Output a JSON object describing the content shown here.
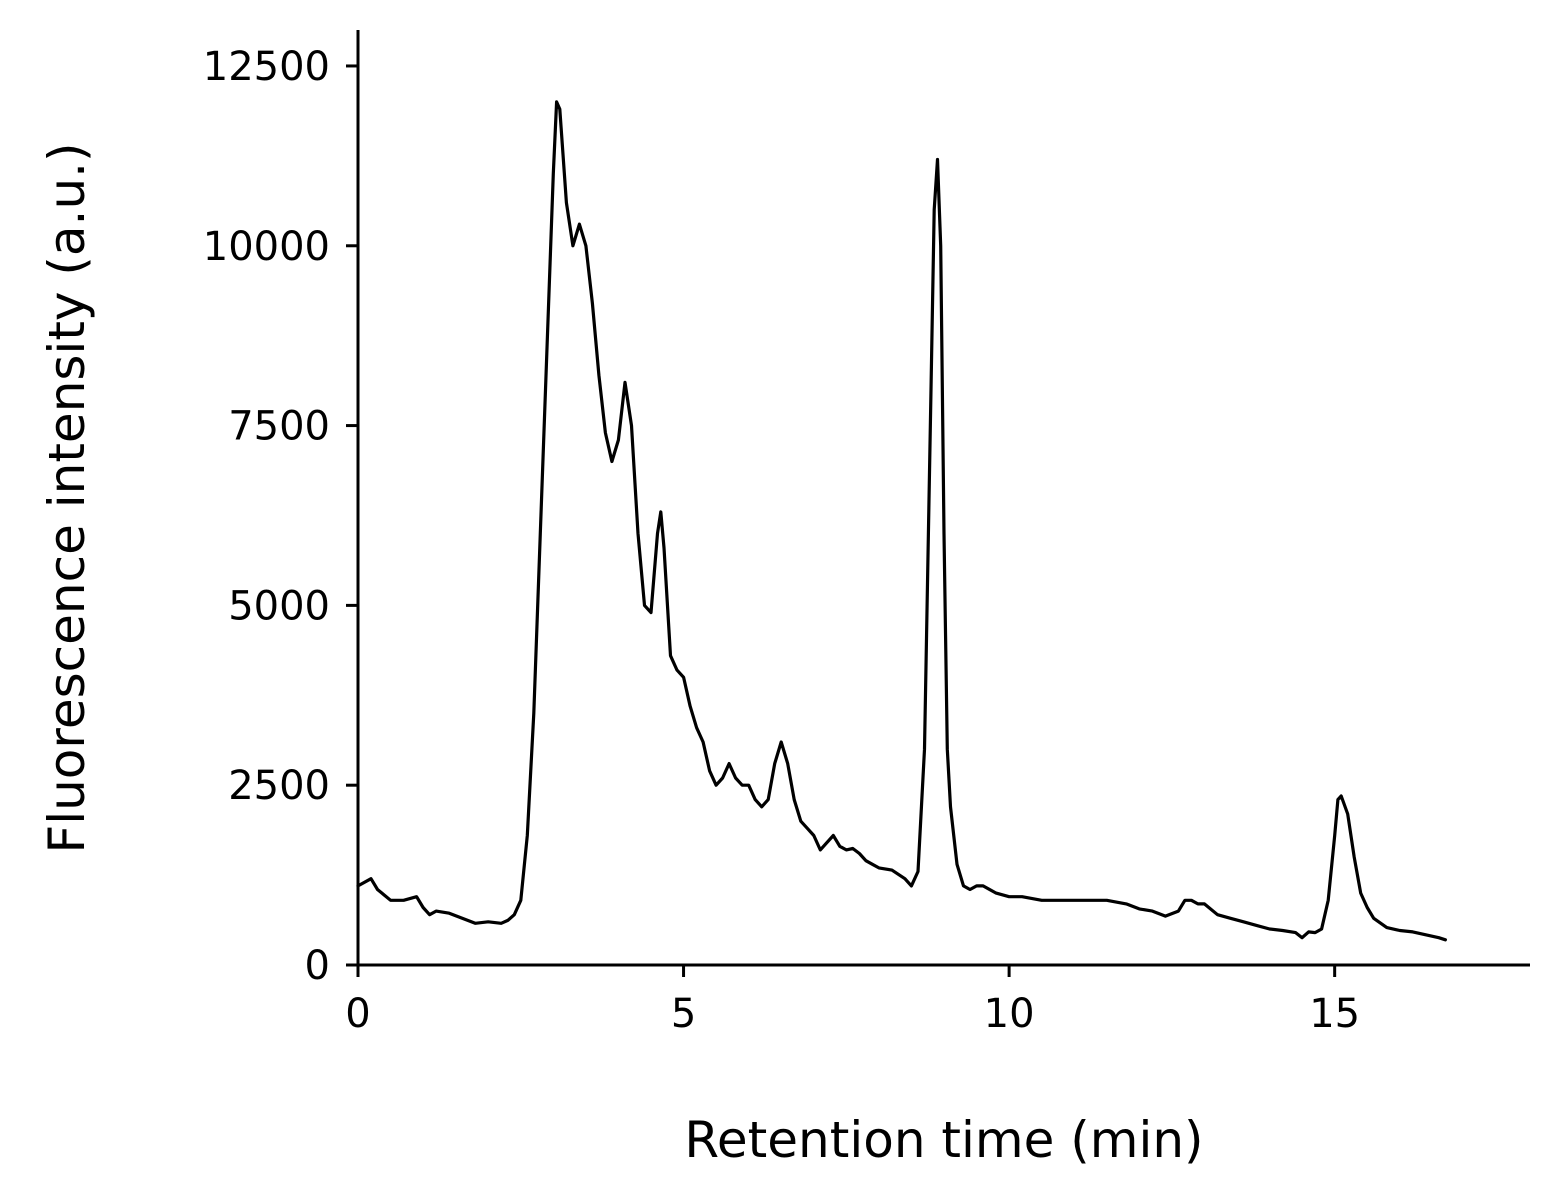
{
  "chart_data": {
    "type": "line",
    "title": "",
    "xlabel": "Retention time (min)",
    "ylabel": "Fluorescence intensity (a.u.)",
    "xlim": [
      0,
      18
    ],
    "ylim": [
      0,
      13000
    ],
    "xticks": [
      0,
      5,
      10,
      15
    ],
    "yticks": [
      0,
      2500,
      5000,
      7500,
      10000,
      12500
    ],
    "grid": false,
    "legend": "none",
    "line_color": "#000000",
    "series": [
      {
        "x": [
          0.0,
          0.2,
          0.3,
          0.5,
          0.7,
          0.9,
          1.0,
          1.1,
          1.2,
          1.4,
          1.6,
          1.8,
          2.0,
          2.2,
          2.3,
          2.4,
          2.5,
          2.6,
          2.7,
          2.8,
          2.9,
          3.0,
          3.05,
          3.1,
          3.2,
          3.3,
          3.4,
          3.5,
          3.6,
          3.7,
          3.8,
          3.9,
          4.0,
          4.1,
          4.2,
          4.3,
          4.4,
          4.5,
          4.6,
          4.65,
          4.7,
          4.8,
          4.9,
          5.0,
          5.1,
          5.2,
          5.3,
          5.4,
          5.5,
          5.6,
          5.7,
          5.8,
          5.9,
          6.0,
          6.1,
          6.2,
          6.3,
          6.4,
          6.5,
          6.6,
          6.7,
          6.8,
          6.9,
          7.0,
          7.1,
          7.2,
          7.3,
          7.4,
          7.5,
          7.6,
          7.7,
          7.8,
          7.9,
          8.0,
          8.2,
          8.4,
          8.5,
          8.6,
          8.7,
          8.8,
          8.85,
          8.9,
          8.95,
          9.0,
          9.05,
          9.1,
          9.2,
          9.3,
          9.4,
          9.5,
          9.6,
          9.8,
          10.0,
          10.2,
          10.5,
          10.8,
          11.0,
          11.2,
          11.5,
          11.8,
          12.0,
          12.2,
          12.4,
          12.6,
          12.7,
          12.8,
          12.9,
          13.0,
          13.2,
          13.4,
          13.6,
          13.8,
          14.0,
          14.2,
          14.4,
          14.5,
          14.6,
          14.7,
          14.8,
          14.9,
          15.0,
          15.05,
          15.1,
          15.2,
          15.3,
          15.4,
          15.5,
          15.6,
          15.8,
          16.0,
          16.2,
          16.4,
          16.6,
          16.7
        ],
        "y": [
          1100,
          1200,
          1050,
          900,
          900,
          950,
          800,
          700,
          750,
          720,
          650,
          580,
          600,
          580,
          620,
          700,
          900,
          1800,
          3500,
          6000,
          8500,
          11000,
          12000,
          11900,
          10600,
          10000,
          10300,
          10000,
          9200,
          8200,
          7400,
          7000,
          7300,
          8100,
          7500,
          6000,
          5000,
          4900,
          6000,
          6300,
          5800,
          4300,
          4100,
          4000,
          3600,
          3300,
          3100,
          2700,
          2500,
          2600,
          2800,
          2600,
          2500,
          2500,
          2300,
          2200,
          2300,
          2800,
          3100,
          2800,
          2300,
          2000,
          1900,
          1800,
          1600,
          1700,
          1800,
          1650,
          1600,
          1620,
          1550,
          1450,
          1400,
          1350,
          1320,
          1200,
          1100,
          1300,
          3000,
          8000,
          10500,
          11200,
          10000,
          6000,
          3000,
          2200,
          1400,
          1100,
          1050,
          1100,
          1100,
          1000,
          950,
          950,
          900,
          900,
          900,
          900,
          900,
          850,
          780,
          750,
          680,
          750,
          900,
          900,
          850,
          850,
          700,
          650,
          600,
          550,
          500,
          480,
          450,
          380,
          460,
          450,
          500,
          900,
          1800,
          2300,
          2350,
          2100,
          1500,
          1000,
          800,
          650,
          520,
          480,
          460,
          420,
          380,
          350
        ]
      }
    ]
  }
}
